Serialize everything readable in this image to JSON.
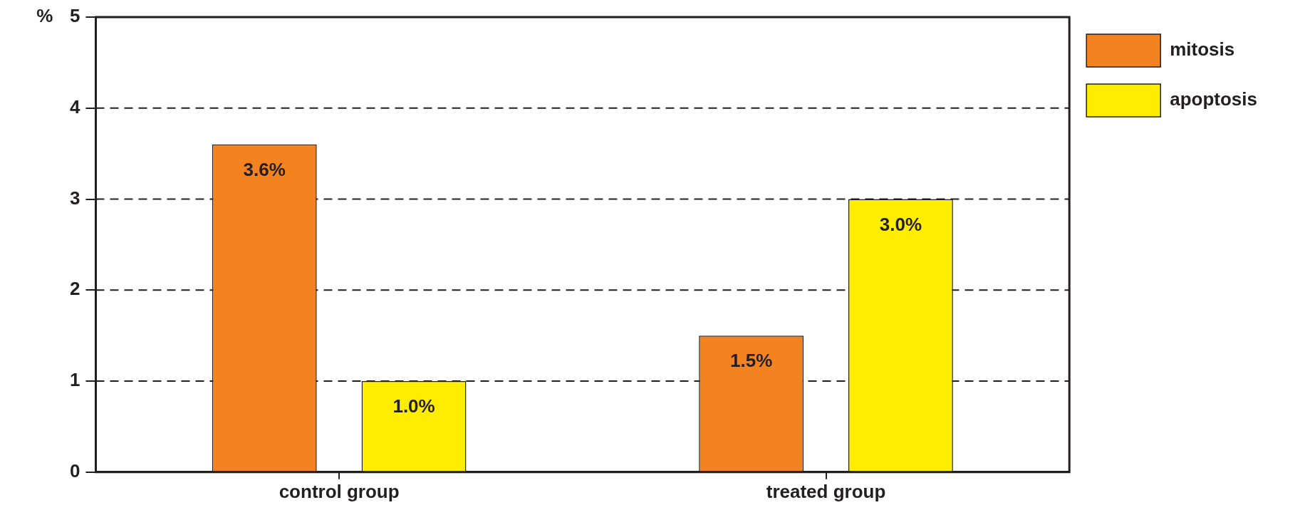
{
  "chart_data": {
    "type": "bar",
    "ylabel": "%",
    "categories": [
      "control group",
      "treated group"
    ],
    "series": [
      {
        "name": "mitosis",
        "color": "#f38321",
        "values": [
          3.6,
          1.5
        ],
        "value_labels": [
          "3.6%",
          "1.5%"
        ]
      },
      {
        "name": "apoptosis",
        "color": "#ffed00",
        "values": [
          1.0,
          3.0
        ],
        "value_labels": [
          "1.0%",
          "3.0%"
        ]
      }
    ],
    "ylim": [
      0,
      5
    ],
    "yticks": [
      0,
      1,
      2,
      3,
      4,
      5
    ],
    "grid": "y",
    "legend": "top right"
  }
}
